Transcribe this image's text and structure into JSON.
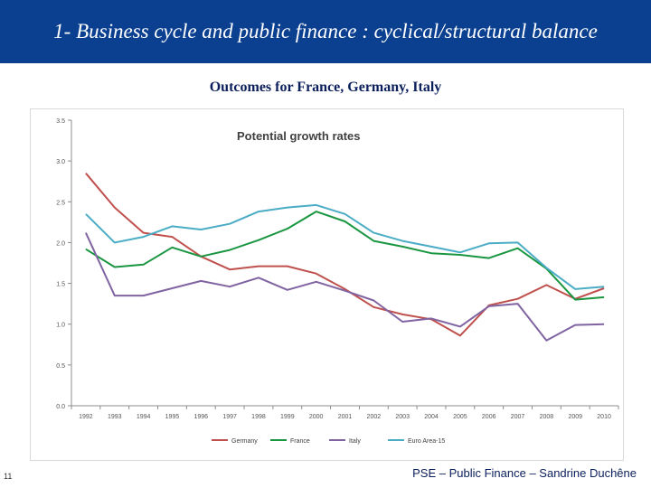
{
  "header": {
    "title": "1- Business cycle and public finance : cyclical/structural balance"
  },
  "subtitle": "Outcomes for France, Germany, Italy",
  "footer": {
    "page_number": "11",
    "text": "PSE – Public Finance – Sandrine Duchêne"
  },
  "colors": {
    "header_bg": "#0b3f8f",
    "germany": "#c0504d",
    "france": "#1a9641",
    "italy": "#8064a2",
    "euro_area": "#4bacc6"
  },
  "chart_data": {
    "type": "line",
    "title": "Potential growth rates",
    "xlabel": "",
    "ylabel": "",
    "categories": [
      "1992",
      "1993",
      "1994",
      "1995",
      "1996",
      "1997",
      "1998",
      "1999",
      "2000",
      "2001",
      "2002",
      "2003",
      "2004",
      "2005",
      "2006",
      "2007",
      "2008",
      "2009",
      "2010"
    ],
    "ylim": [
      0,
      3.5
    ],
    "yticks": [
      "0.0",
      "0.5",
      "1.0",
      "1.5",
      "2.0",
      "2.5",
      "3.0",
      "3.5"
    ],
    "grid": false,
    "legend": "bottom",
    "series": [
      {
        "name": "Germany",
        "color": "#c0504d",
        "values": [
          2.85,
          2.43,
          2.12,
          2.07,
          1.83,
          1.67,
          1.71,
          1.71,
          1.62,
          1.43,
          1.21,
          1.12,
          1.06,
          0.86,
          1.23,
          1.31,
          1.48,
          1.31,
          1.44
        ]
      },
      {
        "name": "France",
        "color": "#1a9641",
        "values": [
          1.92,
          1.7,
          1.73,
          1.94,
          1.83,
          1.91,
          2.03,
          2.17,
          2.38,
          2.26,
          2.02,
          1.95,
          1.87,
          1.85,
          1.81,
          1.93,
          1.68,
          1.3,
          1.33
        ]
      },
      {
        "name": "Italy",
        "color": "#8064a2",
        "values": [
          2.12,
          1.35,
          1.35,
          1.44,
          1.53,
          1.46,
          1.57,
          1.42,
          1.52,
          1.41,
          1.29,
          1.03,
          1.07,
          0.97,
          1.22,
          1.25,
          0.8,
          0.99,
          1.0
        ]
      },
      {
        "name": "Euro Area-15",
        "color": "#4bacc6",
        "values": [
          2.35,
          2.0,
          2.07,
          2.2,
          2.16,
          2.23,
          2.38,
          2.43,
          2.46,
          2.35,
          2.12,
          2.02,
          1.95,
          1.88,
          1.99,
          2.0,
          1.69,
          1.43,
          1.46
        ]
      }
    ]
  }
}
